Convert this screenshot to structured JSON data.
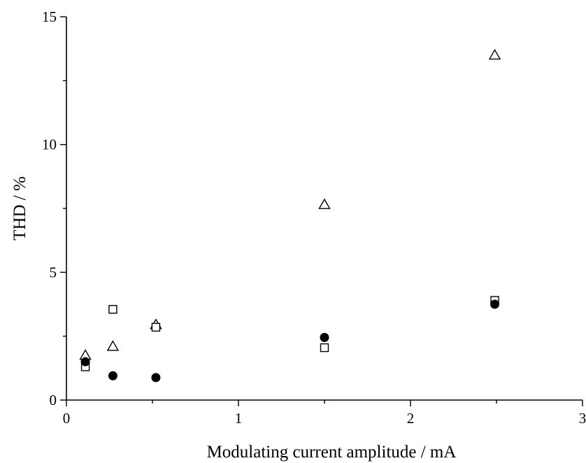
{
  "chart_data": {
    "type": "scatter",
    "title": "",
    "xlabel": "Modulating current amplitude / mA",
    "ylabel": "THD / %",
    "xlim": [
      0,
      3
    ],
    "ylim": [
      0,
      15
    ],
    "xticks": [
      0,
      1,
      2,
      3
    ],
    "yticks": [
      0,
      5,
      10,
      15
    ],
    "xtick_labels": [
      "0",
      "1",
      "2",
      "3"
    ],
    "ytick_labels": [
      "0",
      "5",
      "10",
      "15"
    ],
    "grid": false,
    "legend": "none",
    "series": [
      {
        "marker": "open-triangle",
        "x": [
          0.11,
          0.27,
          0.52,
          1.5,
          2.49
        ],
        "y": [
          1.75,
          2.1,
          2.95,
          7.65,
          13.5
        ]
      },
      {
        "marker": "open-square",
        "x": [
          0.11,
          0.27,
          0.52,
          1.5,
          2.49
        ],
        "y": [
          1.3,
          3.55,
          2.85,
          2.05,
          3.9
        ]
      },
      {
        "marker": "filled-circle",
        "x": [
          0.11,
          0.27,
          0.52,
          1.5,
          2.49
        ],
        "y": [
          1.5,
          0.95,
          0.88,
          2.45,
          3.75
        ]
      }
    ]
  }
}
